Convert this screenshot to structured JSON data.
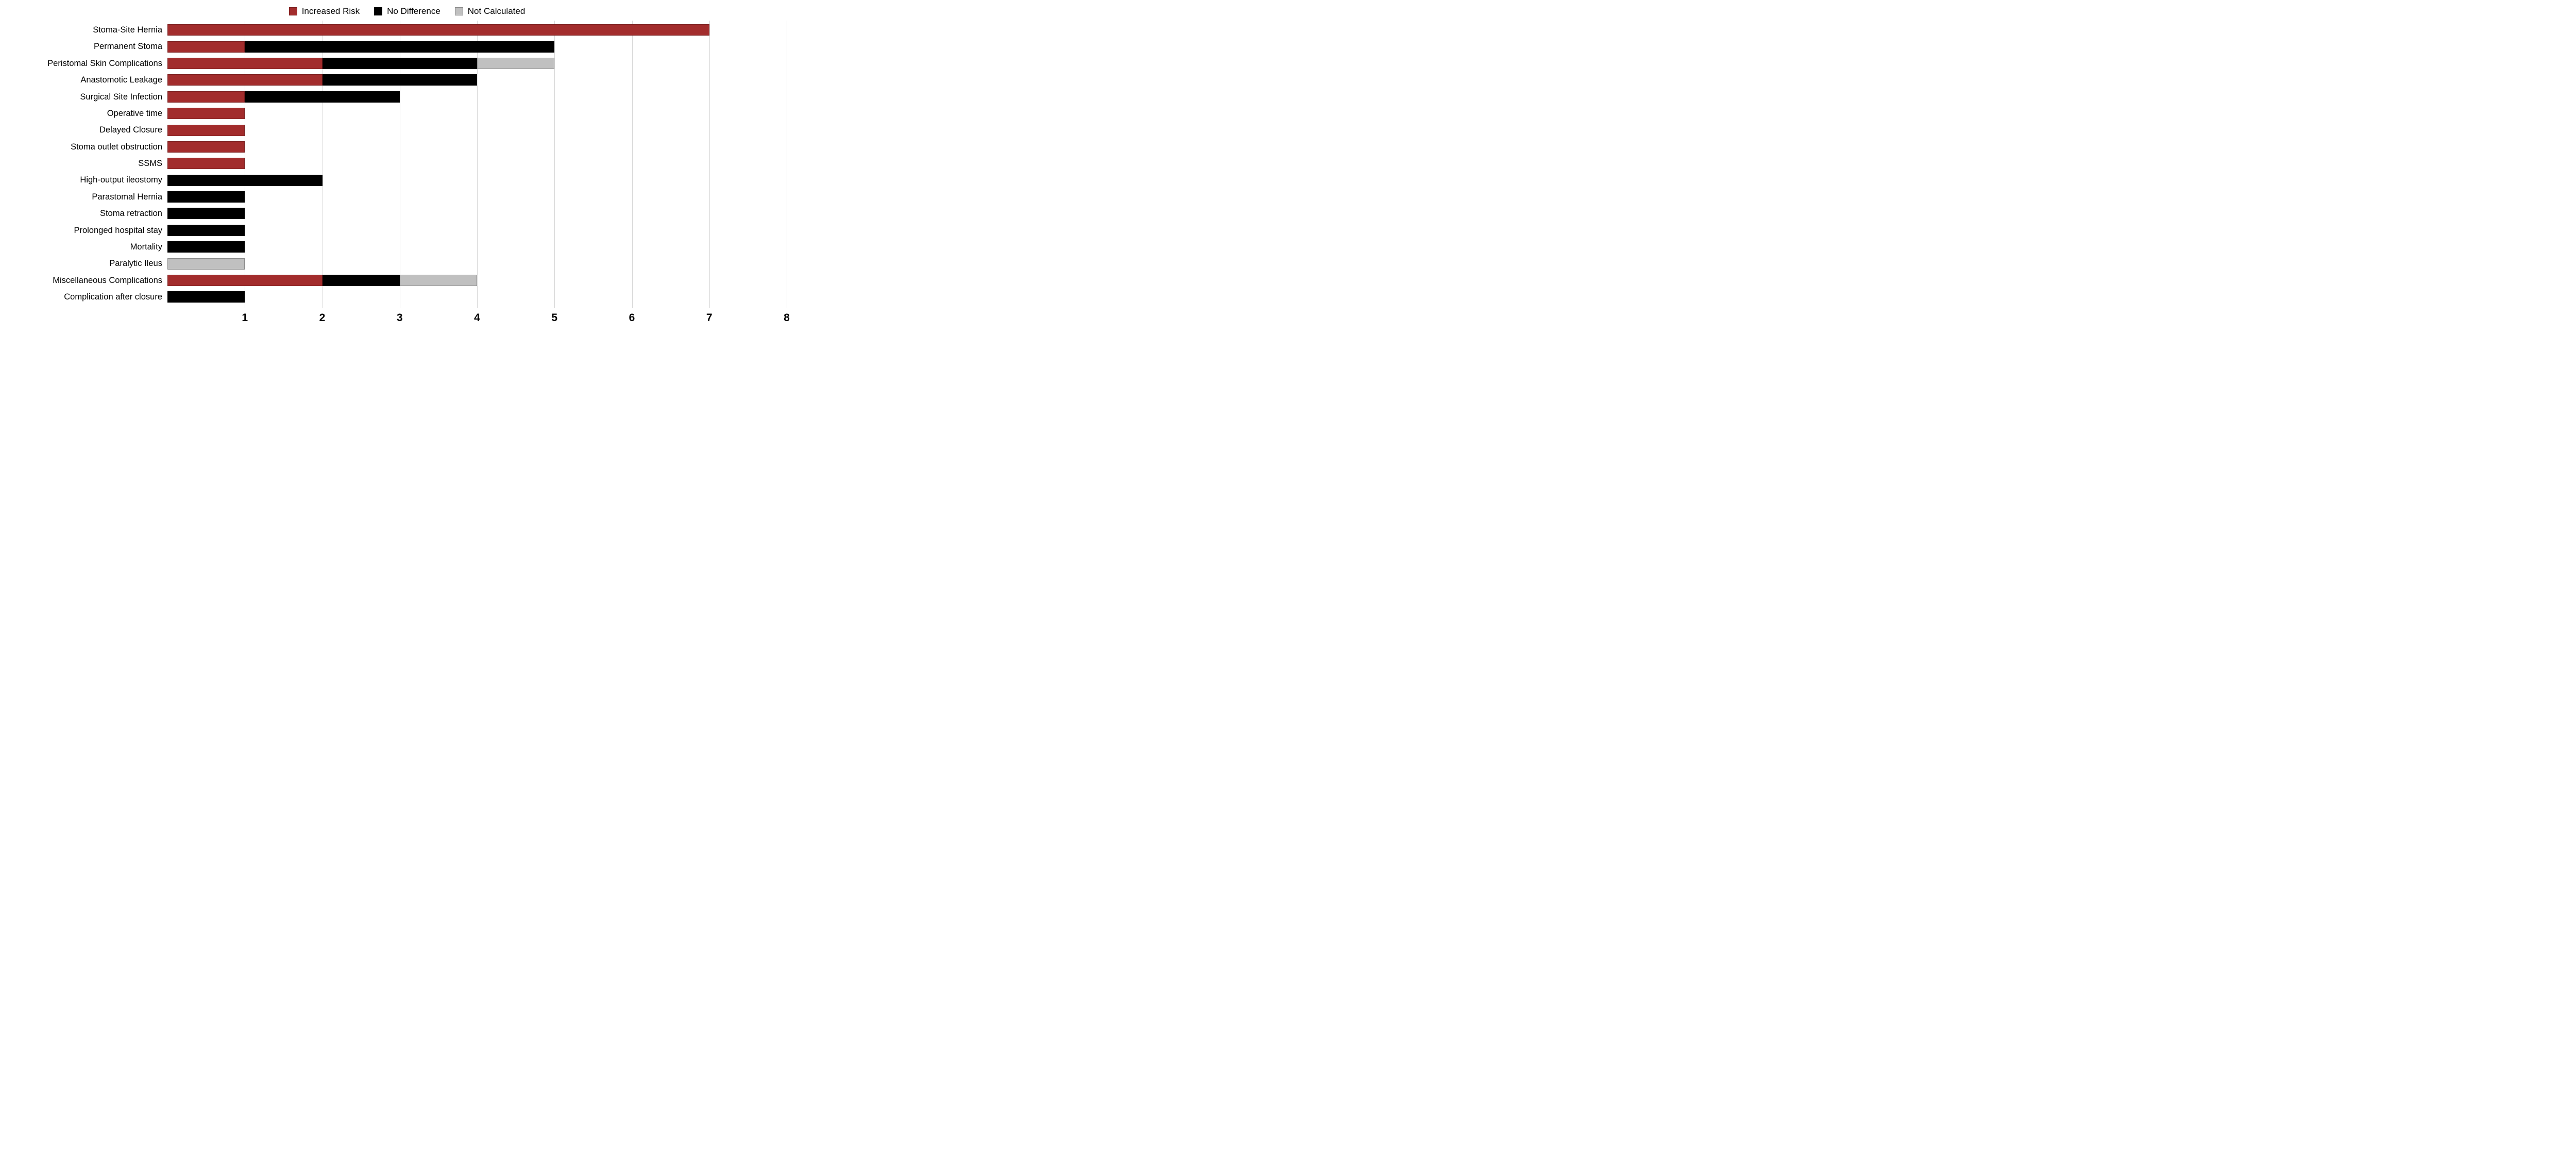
{
  "legend": {
    "items": [
      {
        "label": "Increased Risk",
        "color": "#A22C2C",
        "border": "#7c1f1f"
      },
      {
        "label": "No Difference",
        "color": "#000000",
        "border": "#000000"
      },
      {
        "label": "Not Calculated",
        "color": "#C0C0C0",
        "border": "#8a8a8a"
      }
    ]
  },
  "chart_data": {
    "type": "bar",
    "orientation": "horizontal",
    "stacked": true,
    "title": "",
    "xlabel": "",
    "ylabel": "",
    "xlim": [
      0,
      8
    ],
    "xticks": [
      1,
      2,
      3,
      4,
      5,
      6,
      7,
      8
    ],
    "grid": "vertical",
    "legend_position": "top-center",
    "categories": [
      "Stoma-Site Hernia",
      "Permanent Stoma",
      "Peristomal Skin Complications",
      "Anastomotic Leakage",
      "Surgical Site Infection",
      "Operative time",
      "Delayed Closure",
      "Stoma outlet obstruction",
      "SSMS",
      "High-output ileostomy",
      "Parastomal Hernia",
      "Stoma retraction",
      "Prolonged hospital stay",
      "Mortality",
      "Paralytic Ileus",
      "Miscellaneous Complications",
      "Complication after closure"
    ],
    "series": [
      {
        "name": "Increased Risk",
        "color": "#A22C2C",
        "border": "#7c1f1f",
        "values": [
          7,
          1,
          2,
          2,
          1,
          1,
          1,
          1,
          1,
          0,
          0,
          0,
          0,
          0,
          0,
          2,
          0
        ]
      },
      {
        "name": "No Difference",
        "color": "#000000",
        "border": "#000000",
        "values": [
          0,
          4,
          2,
          2,
          2,
          0,
          0,
          0,
          0,
          2,
          1,
          1,
          1,
          1,
          0,
          1,
          1
        ]
      },
      {
        "name": "Not Calculated",
        "color": "#C0C0C0",
        "border": "#8a8a8a",
        "values": [
          0,
          0,
          1,
          0,
          0,
          0,
          0,
          0,
          0,
          0,
          0,
          0,
          0,
          0,
          1,
          1,
          0
        ]
      }
    ]
  }
}
